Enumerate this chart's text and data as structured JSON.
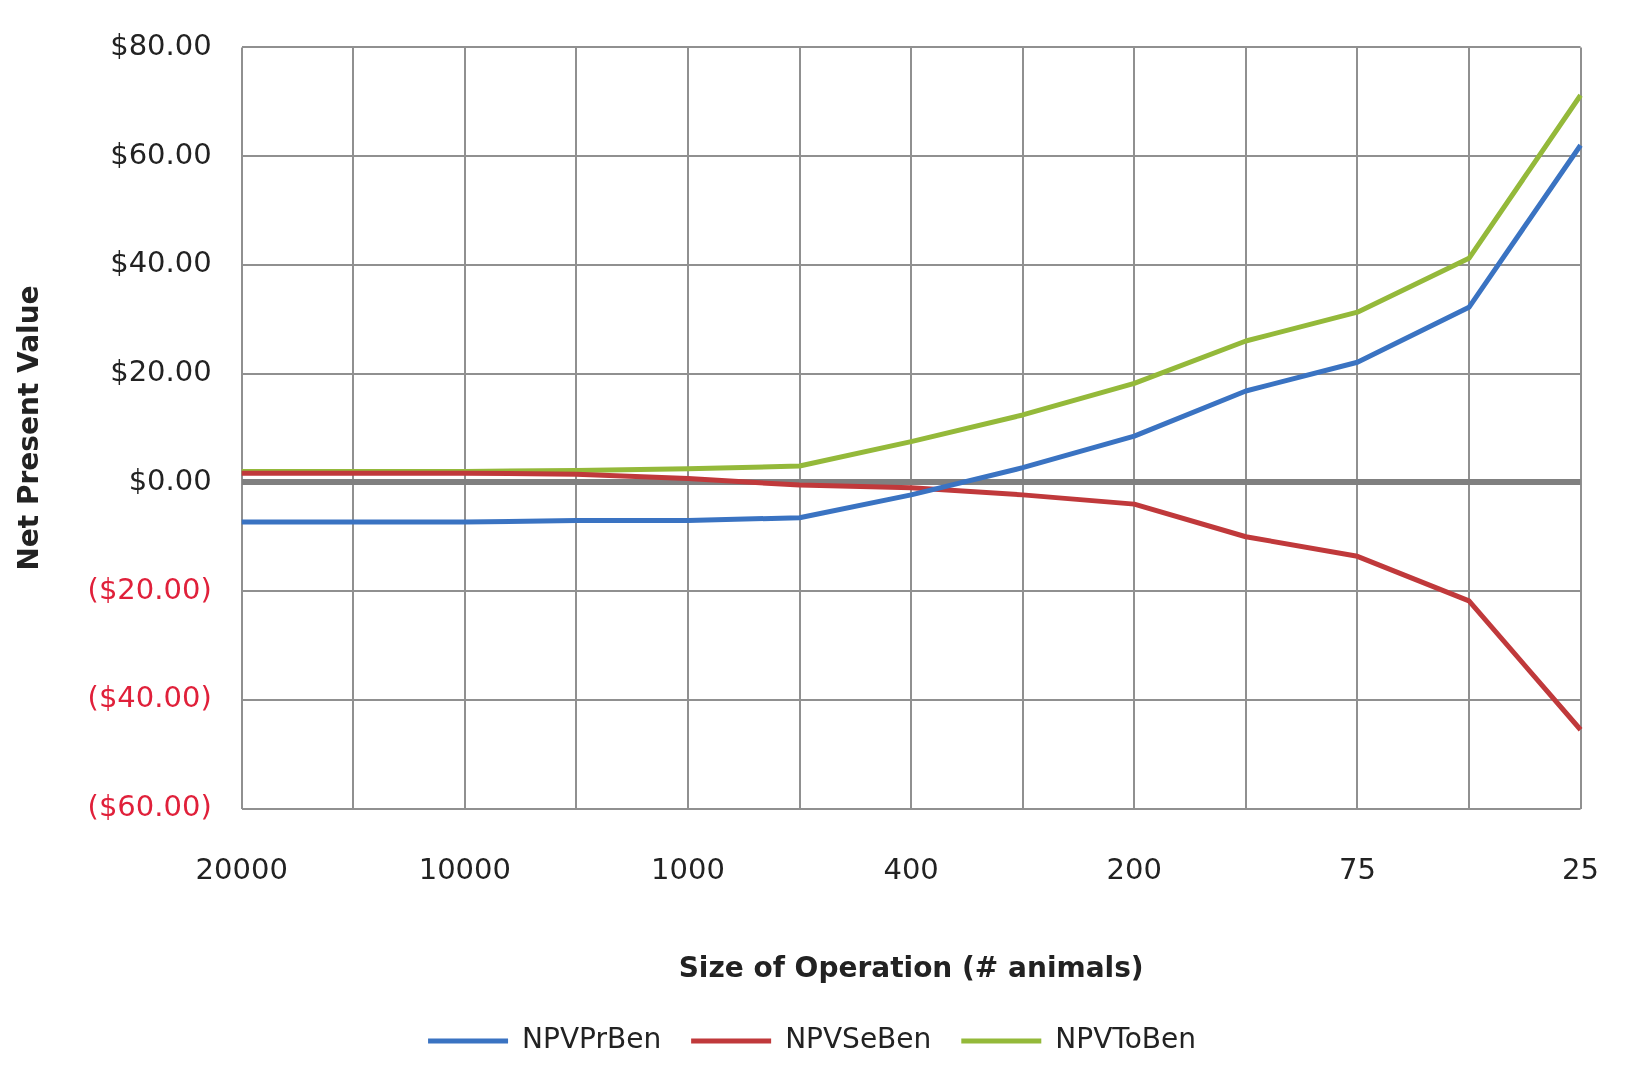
{
  "chart_data": {
    "type": "line",
    "xlabel": "Size of Operation (# animals)",
    "ylabel": "Net Present Value",
    "categories": [
      "20000",
      null,
      "10000",
      null,
      "1000",
      null,
      "400",
      null,
      "200",
      null,
      "75",
      null,
      "25"
    ],
    "series": [
      {
        "name": "NPVPrBen",
        "color": "#3a73c2",
        "values": [
          -7.3,
          -7.3,
          -7.3,
          -7,
          -7,
          -6.5,
          -2.3,
          2.7,
          8.5,
          16.8,
          22.1,
          32.2,
          62
        ]
      },
      {
        "name": "NPVSeBen",
        "color": "#c0393b",
        "values": [
          1.7,
          1.7,
          1.7,
          1.5,
          0.7,
          -0.5,
          -1,
          -2.3,
          -4,
          -10,
          -13.6,
          -21.8,
          -45.5
        ]
      },
      {
        "name": "NPVToBen",
        "color": "#94b93a",
        "values": [
          2,
          2,
          2,
          2.2,
          2.5,
          3,
          7.5,
          12.4,
          18.2,
          26,
          31.3,
          41.2,
          71.2
        ]
      }
    ],
    "ylim": [
      -60,
      80
    ],
    "yticks": [
      {
        "value": -60,
        "label": "($60.00)"
      },
      {
        "value": -40,
        "label": "($40.00)"
      },
      {
        "value": -20,
        "label": "($20.00)"
      },
      {
        "value": 0,
        "label": "$0.00"
      },
      {
        "value": 20,
        "label": "$20.00"
      },
      {
        "value": 40,
        "label": "$40.00"
      },
      {
        "value": 60,
        "label": "$60.00"
      },
      {
        "value": 80,
        "label": "$80.00"
      }
    ],
    "grid": true,
    "legend": "bottom",
    "marker": "none",
    "line_style": "solid"
  }
}
